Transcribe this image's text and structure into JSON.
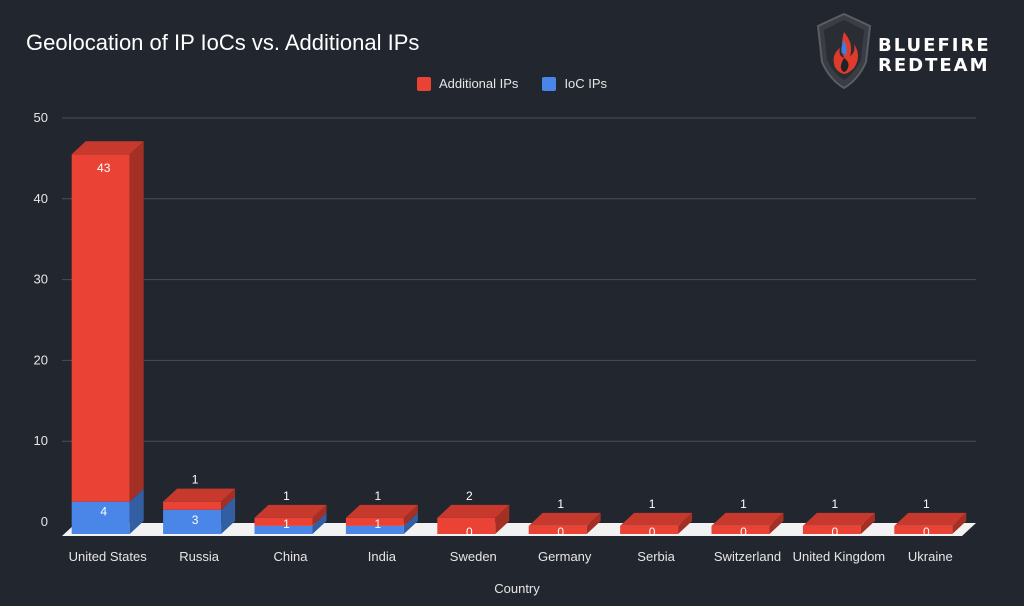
{
  "chart_data": {
    "type": "bar",
    "stacked": true,
    "title": "Geolocation of IP IoCs vs. Additional IPs",
    "xlabel": "Country",
    "ylabel": "",
    "ylim": [
      0,
      50
    ],
    "yticks": [
      0,
      10,
      20,
      30,
      40,
      50
    ],
    "grid": true,
    "legend_position": "top-center",
    "categories": [
      "United States",
      "Russia",
      "China",
      "India",
      "Sweden",
      "Germany",
      "Serbia",
      "Switzerland",
      "United Kingdom",
      "Ukraine"
    ],
    "series": [
      {
        "name": "IoC IPs",
        "color": "#4a86e8",
        "values": [
          4,
          3,
          1,
          1,
          0,
          0,
          0,
          0,
          0,
          0
        ]
      },
      {
        "name": "Additional IPs",
        "color": "#ea4335",
        "values": [
          43,
          1,
          1,
          1,
          2,
          1,
          1,
          1,
          1,
          1
        ]
      }
    ]
  },
  "logo": {
    "line1": "BLUEFIRE",
    "line2": "REDTEAM"
  }
}
